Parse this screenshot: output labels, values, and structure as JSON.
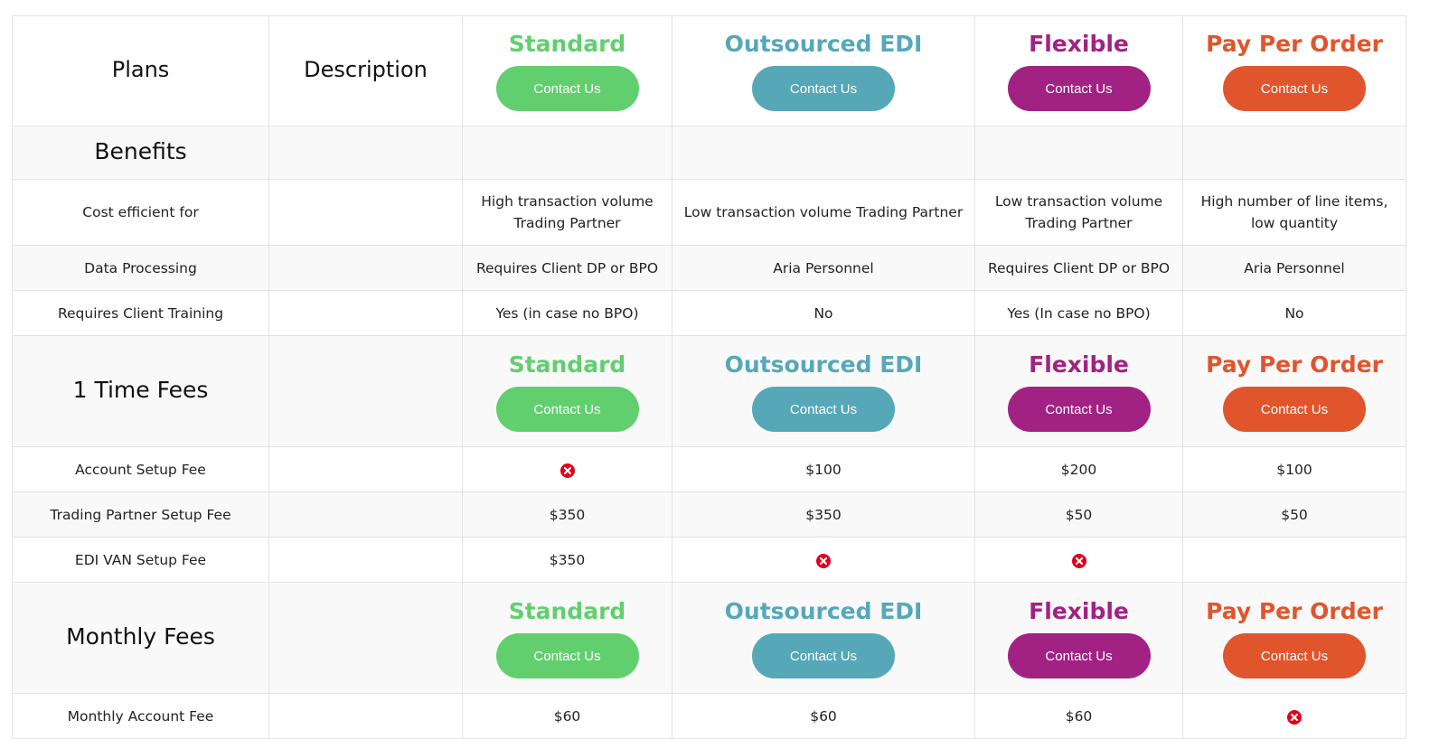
{
  "colors": {
    "standard": "#62cf6f",
    "outsourced": "#56a8b8",
    "flexible": "#a22284",
    "ppo": "#e1552d",
    "not_included": "#e2001a"
  },
  "header": {
    "plans_label": "Plans",
    "description_label": "Description"
  },
  "plans": [
    {
      "name": "Standard",
      "button": "Contact Us"
    },
    {
      "name": "Outsourced EDI",
      "button": "Contact Us"
    },
    {
      "name": "Flexible",
      "button": "Contact Us"
    },
    {
      "name": "Pay Per Order",
      "button": "Contact Us"
    }
  ],
  "benefits": {
    "title": "Benefits",
    "rows": [
      {
        "label": "Cost efficient for",
        "values": [
          "High transaction volume Trading Partner",
          "Low transaction volume Trading Partner",
          "Low transaction volume Trading Partner",
          "High number of line items, low quantity"
        ]
      },
      {
        "label": "Data Processing",
        "values": [
          "Requires Client DP or BPO",
          "Aria Personnel",
          "Requires Client DP or BPO",
          "Aria Personnel"
        ]
      },
      {
        "label": "Requires Client Training",
        "values": [
          "Yes (in case no BPO)",
          "No",
          "Yes (In case no BPO)",
          "No"
        ]
      }
    ]
  },
  "one_time_fees": {
    "title": "1 Time Fees",
    "rows": [
      {
        "label": "Account Setup Fee",
        "values": [
          "x-icon",
          "$100",
          "$200",
          "$100"
        ]
      },
      {
        "label": "Trading Partner Setup Fee",
        "values": [
          "$350",
          "$350",
          "$50",
          "$50"
        ]
      },
      {
        "label": "EDI VAN Setup Fee",
        "values": [
          "$350",
          "x-icon",
          "x-icon",
          ""
        ]
      }
    ]
  },
  "monthly_fees": {
    "title": "Monthly Fees",
    "rows": [
      {
        "label": "Monthly Account Fee",
        "values": [
          "$60",
          "$60",
          "$60",
          "x-icon"
        ]
      }
    ]
  }
}
